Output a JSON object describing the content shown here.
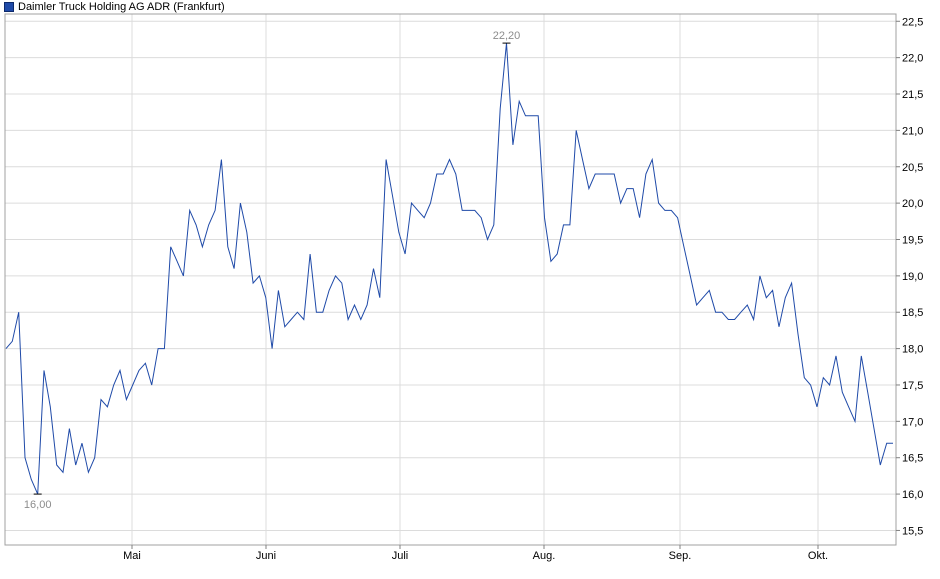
{
  "legend": {
    "label": "Daimler Truck Holding AG ADR (Frankfurt)",
    "color": "#1f4aa8"
  },
  "chart_data": {
    "type": "line",
    "title": "",
    "legend_position": "top-left",
    "grid": true,
    "xlabel": "",
    "ylabel": "",
    "ylim": [
      15.3,
      22.6
    ],
    "y_ticks": [
      "15,5",
      "16,0",
      "16,5",
      "17,0",
      "17,5",
      "18,0",
      "18,5",
      "19,0",
      "19,5",
      "20,0",
      "20,5",
      "21,0",
      "21,5",
      "22,0",
      "22,5"
    ],
    "x_ticks": [
      "Mai",
      "Juni",
      "Juli",
      "Aug.",
      "Sep.",
      "Okt."
    ],
    "annotations": [
      {
        "label": "22,20",
        "value": 22.2,
        "kind": "max"
      },
      {
        "label": "16,00",
        "value": 16.0,
        "kind": "min"
      }
    ],
    "series": [
      {
        "name": "Daimler Truck Holding AG ADR (Frankfurt)",
        "color": "#1f4aa8",
        "values": [
          18.0,
          18.1,
          18.5,
          16.5,
          16.2,
          16.0,
          17.7,
          17.2,
          16.4,
          16.3,
          16.9,
          16.4,
          16.7,
          16.3,
          16.5,
          17.3,
          17.2,
          17.5,
          17.7,
          17.3,
          17.5,
          17.7,
          17.8,
          17.5,
          18.0,
          18.0,
          19.4,
          19.2,
          19.0,
          19.9,
          19.7,
          19.4,
          19.7,
          19.9,
          20.6,
          19.4,
          19.1,
          20.0,
          19.6,
          18.9,
          19.0,
          18.7,
          18.0,
          18.8,
          18.3,
          18.4,
          18.5,
          18.4,
          19.3,
          18.5,
          18.5,
          18.8,
          19.0,
          18.9,
          18.4,
          18.6,
          18.4,
          18.6,
          19.1,
          18.7,
          20.6,
          20.1,
          19.6,
          19.3,
          20.0,
          19.9,
          19.8,
          20.0,
          20.4,
          20.4,
          20.6,
          20.4,
          19.9,
          19.9,
          19.9,
          19.8,
          19.5,
          19.7,
          21.3,
          22.2,
          20.8,
          21.4,
          21.2,
          21.2,
          21.2,
          19.8,
          19.2,
          19.3,
          19.7,
          19.7,
          21.0,
          20.6,
          20.2,
          20.4,
          20.4,
          20.4,
          20.4,
          20.0,
          20.2,
          20.2,
          19.8,
          20.4,
          20.6,
          20.0,
          19.9,
          19.9,
          19.8,
          19.4,
          19.0,
          18.6,
          18.7,
          18.8,
          18.5,
          18.5,
          18.4,
          18.4,
          18.5,
          18.6,
          18.4,
          19.0,
          18.7,
          18.8,
          18.3,
          18.7,
          18.9,
          18.2,
          17.6,
          17.5,
          17.2,
          17.6,
          17.5,
          17.9,
          17.4,
          17.2,
          17.0,
          17.9,
          17.4,
          16.9,
          16.4,
          16.7,
          16.7
        ]
      }
    ]
  }
}
